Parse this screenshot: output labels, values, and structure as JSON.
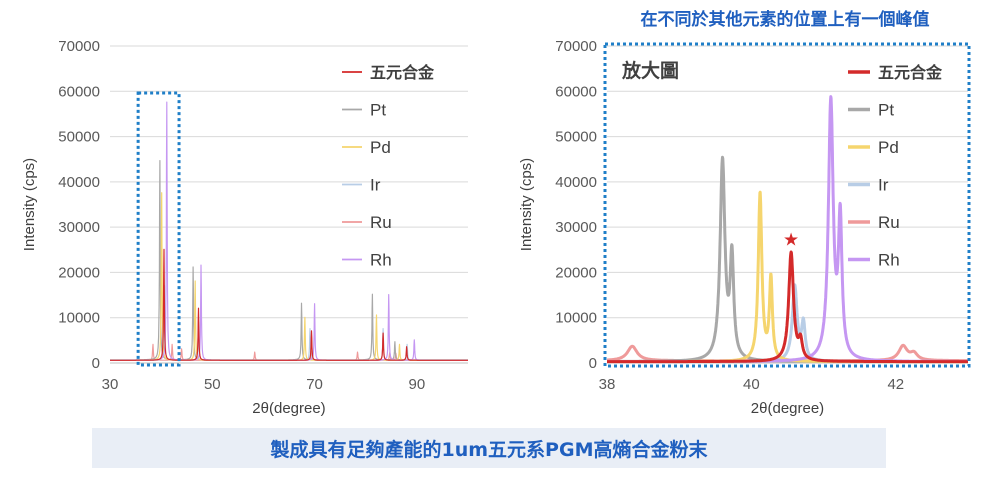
{
  "banner": {
    "caption": "製成具有足夠產能的1um五元系PGM高熵合金粉末"
  },
  "colors": {
    "五元合金": "#d42a2a",
    "Pt": "#a8a8a8",
    "Pd": "#f5d56e",
    "Ir": "#b8cde6",
    "Ru": "#ef9a9a",
    "Rh": "#c597f2",
    "zoom_box": "#1f7fc8",
    "callout_text": "#1f5fbf",
    "marker": "#d42a2a"
  },
  "chart_data": [
    {
      "id": "full",
      "type": "line",
      "xlabel": "2θ(degree)",
      "ylabel": "Intensity (cps)",
      "xlim": [
        30,
        100
      ],
      "ylim": [
        0,
        70000
      ],
      "xticks": [
        30,
        50,
        70,
        90
      ],
      "yticks": [
        0,
        10000,
        20000,
        30000,
        40000,
        50000,
        60000,
        70000
      ],
      "grid": "horizontal",
      "legend_position": "top-right",
      "legend": [
        "五元合金",
        "Pt",
        "Pd",
        "Ir",
        "Ru",
        "Rh"
      ],
      "zoom_region_x": [
        35.5,
        43.5
      ],
      "series": [
        {
          "name": "五元合金",
          "baseline": 600,
          "peaks": [
            [
              40.55,
              24500
            ],
            [
              47.3,
              11500
            ],
            [
              69.4,
              6500
            ],
            [
              83.4,
              6000
            ],
            [
              88.0,
              3000
            ]
          ]
        },
        {
          "name": "Pt",
          "baseline": 700,
          "peaks": [
            [
              39.75,
              44000
            ],
            [
              46.25,
              20500
            ],
            [
              67.45,
              12500
            ],
            [
              81.3,
              14500
            ],
            [
              85.7,
              4000
            ]
          ]
        },
        {
          "name": "Pd",
          "baseline": 600,
          "peaks": [
            [
              40.1,
              37000
            ],
            [
              46.65,
              17500
            ],
            [
              68.1,
              9500
            ],
            [
              82.1,
              10000
            ],
            [
              86.6,
              3500
            ]
          ]
        },
        {
          "name": "Ir",
          "baseline": 600,
          "peaks": [
            [
              40.65,
              16500
            ],
            [
              47.3,
              8500
            ],
            [
              69.1,
              7000
            ],
            [
              83.4,
              7000
            ],
            [
              88.1,
              3500
            ]
          ]
        },
        {
          "name": "Ru",
          "baseline": 600,
          "peaks": [
            [
              38.4,
              3500
            ],
            [
              42.15,
              3500
            ],
            [
              44.0,
              2500
            ],
            [
              58.3,
              1800
            ],
            [
              69.4,
              2000
            ],
            [
              78.4,
              1800
            ],
            [
              84.7,
              1800
            ],
            [
              85.9,
              1500
            ]
          ]
        },
        {
          "name": "Rh",
          "baseline": 600,
          "peaks": [
            [
              41.1,
              57000
            ],
            [
              47.8,
              21000
            ],
            [
              70.0,
              12500
            ],
            [
              84.5,
              14500
            ],
            [
              89.5,
              4500
            ]
          ]
        }
      ]
    },
    {
      "id": "zoom",
      "type": "line",
      "title": "放大圖",
      "callout": "在不同於其他元素的位置上有一個峰值",
      "xlabel": "2θ(degree)",
      "ylabel": "Intensity (cps)",
      "xlim": [
        38,
        43
      ],
      "ylim": [
        0,
        70000
      ],
      "xticks": [
        38,
        40,
        42
      ],
      "yticks": [
        0,
        10000,
        20000,
        30000,
        40000,
        50000,
        60000,
        70000
      ],
      "grid": "horizontal",
      "legend_position": "top-right",
      "legend": [
        "五元合金",
        "Pt",
        "Pd",
        "Ir",
        "Ru",
        "Rh"
      ],
      "marker": {
        "symbol": "★",
        "x": 40.55,
        "y": 27500
      },
      "series": [
        {
          "name": "五元合金",
          "baseline": 300,
          "peaks": [
            [
              40.55,
              24000,
              0.04
            ],
            [
              40.68,
              4000,
              0.03
            ]
          ]
        },
        {
          "name": "Pt",
          "baseline": 300,
          "peaks": [
            [
              39.6,
              44000,
              0.04
            ],
            [
              39.73,
              22000,
              0.03
            ]
          ]
        },
        {
          "name": "Pd",
          "baseline": 300,
          "peaks": [
            [
              40.12,
              37000,
              0.03
            ],
            [
              40.27,
              18000,
              0.025
            ]
          ]
        },
        {
          "name": "Ir",
          "baseline": 300,
          "peaks": [
            [
              40.6,
              16500,
              0.04
            ],
            [
              40.72,
              8000,
              0.03
            ]
          ]
        },
        {
          "name": "Ru",
          "baseline": 500,
          "peaks": [
            [
              38.35,
              3200,
              0.08
            ],
            [
              42.1,
              3200,
              0.07
            ],
            [
              42.25,
              1500,
              0.06
            ]
          ]
        },
        {
          "name": "Rh",
          "baseline": 300,
          "peaks": [
            [
              41.1,
              57000,
              0.04
            ],
            [
              41.23,
              30000,
              0.03
            ]
          ]
        }
      ]
    }
  ]
}
